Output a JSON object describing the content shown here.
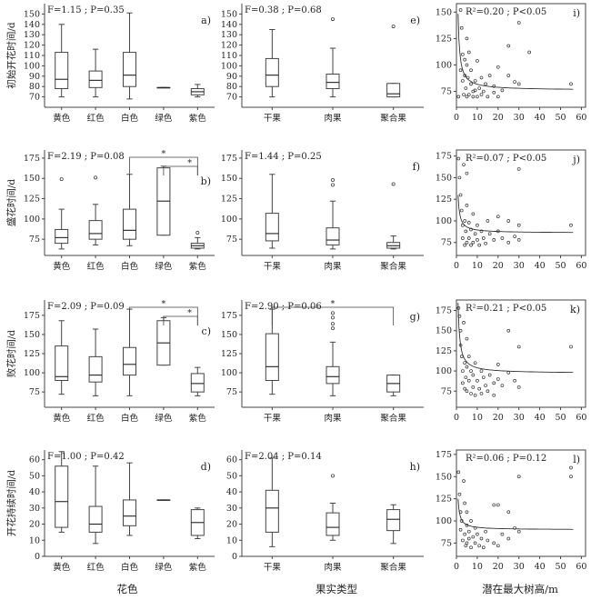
{
  "figure": {
    "xtitles": [
      "花色",
      "果实类型",
      "潜在最大树高/m"
    ]
  },
  "chart_data": [
    {
      "id": "a",
      "type": "box",
      "panel_label": "a)",
      "stat": "F=1.15 ; P=0.35",
      "ylabel": "初始开花时间/d",
      "categories": [
        "黄色",
        "红色",
        "白色",
        "绿色",
        "紫色"
      ],
      "ylim": [
        60,
        160
      ],
      "yticks": [
        70,
        80,
        90,
        100,
        110,
        120,
        130,
        140,
        150
      ],
      "boxes": [
        {
          "q1": 78,
          "median": 87,
          "q3": 113,
          "whisker_low": 70,
          "whisker_high": 140,
          "outliers": []
        },
        {
          "q1": 79,
          "median": 86,
          "q3": 95,
          "whisker_low": 70,
          "whisker_high": 116,
          "outliers": []
        },
        {
          "q1": 80,
          "median": 91,
          "q3": 113,
          "whisker_low": 68,
          "whisker_high": 151,
          "outliers": []
        },
        {
          "q1": 79,
          "median": 79,
          "q3": 79,
          "whisker_low": 79,
          "whisker_high": 79,
          "outliers": []
        },
        {
          "q1": 72,
          "median": 75,
          "q3": 78,
          "whisker_low": 70,
          "whisker_high": 82,
          "outliers": []
        }
      ],
      "annotations": []
    },
    {
      "id": "e",
      "type": "box",
      "panel_label": "e)",
      "stat": "F=0.38 ; P=0.68",
      "ylabel": "",
      "categories": [
        "干果",
        "肉果",
        "聚合果"
      ],
      "ylim": [
        60,
        160
      ],
      "yticks": [
        70,
        80,
        90,
        100,
        110,
        120,
        130,
        140,
        150
      ],
      "boxes": [
        {
          "q1": 80,
          "median": 91,
          "q3": 107,
          "whisker_low": 70,
          "whisker_high": 135,
          "outliers": []
        },
        {
          "q1": 78,
          "median": 84,
          "q3": 92,
          "whisker_low": 70,
          "whisker_high": 117,
          "outliers": [
            145
          ]
        },
        {
          "q1": 70,
          "median": 73,
          "q3": 83,
          "whisker_low": 70,
          "whisker_high": 83,
          "outliers": [
            138
          ]
        }
      ],
      "annotations": []
    },
    {
      "id": "i",
      "type": "scatter",
      "panel_label": "i)",
      "stat": "R²=0.20 ; P<0.05",
      "ylabel": "",
      "xlim": [
        0,
        62
      ],
      "ylim": [
        60,
        158
      ],
      "xticks": [
        0,
        10,
        20,
        30,
        40,
        50,
        60
      ],
      "yticks": [
        75,
        100,
        125,
        150
      ],
      "points": [
        [
          1,
          70
        ],
        [
          2,
          152
        ],
        [
          2,
          95
        ],
        [
          2.5,
          135
        ],
        [
          3,
          110
        ],
        [
          3,
          85
        ],
        [
          3.5,
          72
        ],
        [
          4,
          105
        ],
        [
          4,
          90
        ],
        [
          4.5,
          78
        ],
        [
          5,
          125
        ],
        [
          5,
          100
        ],
        [
          5,
          70
        ],
        [
          5.5,
          88
        ],
        [
          6,
          112
        ],
        [
          6,
          72
        ],
        [
          7,
          82
        ],
        [
          7,
          95
        ],
        [
          8,
          75
        ],
        [
          8,
          70
        ],
        [
          9,
          85
        ],
        [
          9,
          76
        ],
        [
          10,
          104
        ],
        [
          10,
          70
        ],
        [
          11,
          78
        ],
        [
          12,
          88
        ],
        [
          12,
          72
        ],
        [
          13,
          75
        ],
        [
          14,
          82
        ],
        [
          15,
          70
        ],
        [
          16,
          90
        ],
        [
          18,
          80
        ],
        [
          18,
          74
        ],
        [
          20,
          98
        ],
        [
          20,
          70
        ],
        [
          22,
          76
        ],
        [
          25,
          118
        ],
        [
          25,
          90
        ],
        [
          28,
          84
        ],
        [
          30,
          140
        ],
        [
          30,
          82
        ],
        [
          35,
          112
        ],
        [
          55,
          82
        ]
      ],
      "fit": {
        "model": "y = a + b/x",
        "a": 76,
        "b": 58
      }
    },
    {
      "id": "b",
      "type": "box",
      "panel_label": "b)",
      "stat": "F=2.19 ; P=0.08",
      "ylabel": "盛花时间/d",
      "categories": [
        "黄色",
        "红色",
        "白色",
        "绿色",
        "紫色"
      ],
      "ylim": [
        55,
        185
      ],
      "yticks": [
        75,
        100,
        125,
        150,
        175
      ],
      "boxes": [
        {
          "q1": 70,
          "median": 77,
          "q3": 87,
          "whisker_low": 63,
          "whisker_high": 112,
          "outliers": [
            149
          ]
        },
        {
          "q1": 75,
          "median": 82,
          "q3": 98,
          "whisker_low": 68,
          "whisker_high": 118,
          "outliers": [
            151
          ]
        },
        {
          "q1": 75,
          "median": 86,
          "q3": 112,
          "whisker_low": 67,
          "whisker_high": 155,
          "outliers": []
        },
        {
          "q1": 80,
          "median": 122,
          "q3": 163,
          "whisker_low": 80,
          "whisker_high": 165,
          "outliers": []
        },
        {
          "q1": 64,
          "median": 67,
          "q3": 70,
          "whisker_low": 63,
          "whisker_high": 77,
          "outliers": [
            83
          ]
        }
      ],
      "annotations": [
        {
          "from": 3,
          "to": 4,
          "level": "low",
          "text": "*"
        },
        {
          "from": 2,
          "to": 4,
          "level": "high",
          "text": "*"
        }
      ]
    },
    {
      "id": "f",
      "type": "box",
      "panel_label": "f)",
      "stat": "F=1.44 ; P=0.25",
      "ylabel": "",
      "categories": [
        "干果",
        "肉果",
        "聚合果"
      ],
      "ylim": [
        55,
        185
      ],
      "yticks": [
        75,
        100,
        125,
        150,
        175
      ],
      "boxes": [
        {
          "q1": 73,
          "median": 82,
          "q3": 107,
          "whisker_low": 64,
          "whisker_high": 155,
          "outliers": []
        },
        {
          "q1": 68,
          "median": 74,
          "q3": 89,
          "whisker_low": 63,
          "whisker_high": 122,
          "outliers": [
            142,
            148
          ]
        },
        {
          "q1": 64,
          "median": 67,
          "q3": 71,
          "whisker_low": 63,
          "whisker_high": 79,
          "outliers": [
            143
          ]
        }
      ],
      "annotations": []
    },
    {
      "id": "j",
      "type": "scatter",
      "panel_label": "j)",
      "stat": "R²=0.07 ; P<0.05",
      "ylabel": "",
      "xlim": [
        0,
        62
      ],
      "ylim": [
        60,
        182
      ],
      "xticks": [
        0,
        10,
        20,
        30,
        40,
        50,
        60
      ],
      "yticks": [
        75,
        100,
        125,
        150,
        175
      ],
      "points": [
        [
          1,
          172
        ],
        [
          1.5,
          150
        ],
        [
          2,
          130
        ],
        [
          2.5,
          112
        ],
        [
          3,
          95
        ],
        [
          3,
          80
        ],
        [
          3.5,
          165
        ],
        [
          4,
          100
        ],
        [
          4,
          72
        ],
        [
          4.5,
          88
        ],
        [
          5,
          155
        ],
        [
          5,
          118
        ],
        [
          5,
          75
        ],
        [
          6,
          98
        ],
        [
          6,
          80
        ],
        [
          7,
          90
        ],
        [
          7,
          72
        ],
        [
          8,
          108
        ],
        [
          8,
          75
        ],
        [
          9,
          85
        ],
        [
          10,
          95
        ],
        [
          10,
          78
        ],
        [
          11,
          72
        ],
        [
          12,
          88
        ],
        [
          13,
          80
        ],
        [
          14,
          74
        ],
        [
          15,
          100
        ],
        [
          16,
          85
        ],
        [
          18,
          78
        ],
        [
          20,
          105
        ],
        [
          20,
          88
        ],
        [
          22,
          80
        ],
        [
          25,
          100
        ],
        [
          25,
          75
        ],
        [
          28,
          82
        ],
        [
          30,
          160
        ],
        [
          30,
          95
        ],
        [
          30,
          78
        ],
        [
          55,
          95
        ]
      ],
      "fit": {
        "model": "y = a + b/x",
        "a": 86,
        "b": 35
      }
    },
    {
      "id": "c",
      "type": "box",
      "panel_label": "c)",
      "stat": "F=2.09 ; P=0.09",
      "ylabel": "败花时间/d",
      "categories": [
        "黄色",
        "红色",
        "白色",
        "绿色",
        "紫色"
      ],
      "ylim": [
        55,
        195
      ],
      "yticks": [
        75,
        100,
        125,
        150,
        175
      ],
      "boxes": [
        {
          "q1": 90,
          "median": 95,
          "q3": 135,
          "whisker_low": 72,
          "whisker_high": 168,
          "outliers": []
        },
        {
          "q1": 88,
          "median": 97,
          "q3": 121,
          "whisker_low": 70,
          "whisker_high": 157,
          "outliers": []
        },
        {
          "q1": 97,
          "median": 111,
          "q3": 133,
          "whisker_low": 70,
          "whisker_high": 183,
          "outliers": []
        },
        {
          "q1": 110,
          "median": 139,
          "q3": 168,
          "whisker_low": 110,
          "whisker_high": 172,
          "outliers": []
        },
        {
          "q1": 75,
          "median": 86,
          "q3": 99,
          "whisker_low": 70,
          "whisker_high": 107,
          "outliers": []
        }
      ],
      "annotations": [
        {
          "from": 3,
          "to": 4,
          "level": "low",
          "text": "*"
        },
        {
          "from": 2,
          "to": 4,
          "level": "high",
          "text": "*"
        }
      ]
    },
    {
      "id": "g",
      "type": "box",
      "panel_label": "g)",
      "stat": "F=2.90 ; P=0.06",
      "ylabel": "",
      "categories": [
        "干果",
        "肉果",
        "聚合果"
      ],
      "ylim": [
        55,
        195
      ],
      "yticks": [
        75,
        100,
        125,
        150,
        175
      ],
      "boxes": [
        {
          "q1": 90,
          "median": 108,
          "q3": 151,
          "whisker_low": 72,
          "whisker_high": 183,
          "outliers": []
        },
        {
          "q1": 86,
          "median": 95,
          "q3": 108,
          "whisker_low": 70,
          "whisker_high": 140,
          "outliers": [
            158,
            164,
            172,
            178
          ]
        },
        {
          "q1": 75,
          "median": 86,
          "q3": 97,
          "whisker_low": 70,
          "whisker_high": 97,
          "outliers": []
        }
      ],
      "annotations": [
        {
          "from": 0,
          "to": 2,
          "level": "high",
          "text": "*"
        }
      ]
    },
    {
      "id": "k",
      "type": "scatter",
      "panel_label": "k)",
      "stat": "R²=0.21 ; P<0.05",
      "ylabel": "",
      "xlim": [
        0,
        62
      ],
      "ylim": [
        55,
        188
      ],
      "xticks": [
        0,
        10,
        20,
        30,
        40,
        50,
        60
      ],
      "yticks": [
        75,
        100,
        125,
        150,
        175
      ],
      "points": [
        [
          1,
          178
        ],
        [
          1.5,
          168
        ],
        [
          2,
          150
        ],
        [
          2,
          132
        ],
        [
          2.5,
          118
        ],
        [
          3,
          100
        ],
        [
          3,
          85
        ],
        [
          3.5,
          160
        ],
        [
          4,
          110
        ],
        [
          4,
          78
        ],
        [
          4.5,
          92
        ],
        [
          5,
          140
        ],
        [
          5,
          105
        ],
        [
          5,
          75
        ],
        [
          6,
          118
        ],
        [
          6,
          88
        ],
        [
          7,
          100
        ],
        [
          7,
          72
        ],
        [
          8,
          95
        ],
        [
          8,
          80
        ],
        [
          9,
          110
        ],
        [
          9,
          70
        ],
        [
          10,
          88
        ],
        [
          11,
          78
        ],
        [
          12,
          100
        ],
        [
          12,
          72
        ],
        [
          13,
          92
        ],
        [
          14,
          82
        ],
        [
          15,
          75
        ],
        [
          16,
          95
        ],
        [
          18,
          85
        ],
        [
          18,
          70
        ],
        [
          20,
          108
        ],
        [
          20,
          90
        ],
        [
          22,
          82
        ],
        [
          25,
          150
        ],
        [
          25,
          98
        ],
        [
          28,
          88
        ],
        [
          30,
          130
        ],
        [
          30,
          80
        ],
        [
          55,
          130
        ]
      ],
      "fit": {
        "model": "y = a + b/x",
        "a": 97,
        "b": 70
      }
    },
    {
      "id": "d",
      "type": "box",
      "panel_label": "d)",
      "stat": "F=1.00 ; P=0.42",
      "ylabel": "开花持续时间/d",
      "categories": [
        "黄色",
        "红色",
        "白色",
        "绿色",
        "紫色"
      ],
      "ylim": [
        0,
        66
      ],
      "yticks": [
        0,
        10,
        20,
        30,
        40,
        50,
        60
      ],
      "boxes": [
        {
          "q1": 18,
          "median": 34,
          "q3": 56,
          "whisker_low": 15,
          "whisker_high": 65,
          "outliers": []
        },
        {
          "q1": 15,
          "median": 20,
          "q3": 31,
          "whisker_low": 8,
          "whisker_high": 56,
          "outliers": []
        },
        {
          "q1": 19,
          "median": 25,
          "q3": 35,
          "whisker_low": 13,
          "whisker_high": 58,
          "outliers": []
        },
        {
          "q1": 35,
          "median": 35,
          "q3": 35,
          "whisker_low": 35,
          "whisker_high": 35,
          "outliers": []
        },
        {
          "q1": 13,
          "median": 21,
          "q3": 29,
          "whisker_low": 11,
          "whisker_high": 30,
          "outliers": []
        }
      ],
      "annotations": []
    },
    {
      "id": "h",
      "type": "box",
      "panel_label": "h)",
      "stat": "F=2.04 ; P=0.14",
      "ylabel": "",
      "categories": [
        "干果",
        "肉果",
        "聚合果"
      ],
      "ylim": [
        0,
        66
      ],
      "yticks": [
        0,
        10,
        20,
        30,
        40,
        50,
        60
      ],
      "boxes": [
        {
          "q1": 15,
          "median": 30,
          "q3": 41,
          "whisker_low": 6,
          "whisker_high": 61,
          "outliers": []
        },
        {
          "q1": 13,
          "median": 18,
          "q3": 27,
          "whisker_low": 10,
          "whisker_high": 33,
          "outliers": [
            50
          ]
        },
        {
          "q1": 16,
          "median": 23,
          "q3": 29,
          "whisker_low": 8,
          "whisker_high": 32,
          "outliers": []
        }
      ],
      "annotations": []
    },
    {
      "id": "l",
      "type": "scatter",
      "panel_label": "l)",
      "stat": "R²=0.06 ; P=0.12",
      "ylabel": "",
      "xlim": [
        0,
        62
      ],
      "ylim": [
        60,
        180
      ],
      "xticks": [
        0,
        10,
        20,
        30,
        40,
        50,
        60
      ],
      "yticks": [
        75,
        100,
        125,
        150,
        175
      ],
      "points": [
        [
          1,
          155
        ],
        [
          1.5,
          130
        ],
        [
          2,
          110
        ],
        [
          2,
          90
        ],
        [
          2.5,
          100
        ],
        [
          3,
          78
        ],
        [
          3.5,
          145
        ],
        [
          4,
          120
        ],
        [
          4,
          85
        ],
        [
          4.5,
          72
        ],
        [
          5,
          95
        ],
        [
          5,
          110
        ],
        [
          5,
          75
        ],
        [
          6,
          88
        ],
        [
          6,
          80
        ],
        [
          7,
          100
        ],
        [
          7,
          70
        ],
        [
          8,
          82
        ],
        [
          9,
          92
        ],
        [
          9,
          75
        ],
        [
          10,
          85
        ],
        [
          11,
          72
        ],
        [
          12,
          80
        ],
        [
          13,
          70
        ],
        [
          14,
          88
        ],
        [
          15,
          78
        ],
        [
          18,
          118
        ],
        [
          18,
          75
        ],
        [
          20,
          118
        ],
        [
          20,
          72
        ],
        [
          22,
          85
        ],
        [
          25,
          110
        ],
        [
          25,
          80
        ],
        [
          28,
          92
        ],
        [
          30,
          150
        ],
        [
          30,
          88
        ],
        [
          55,
          160
        ],
        [
          55,
          150
        ]
      ],
      "fit": {
        "model": "y = a + b/x",
        "a": 90,
        "b": 28
      }
    }
  ]
}
